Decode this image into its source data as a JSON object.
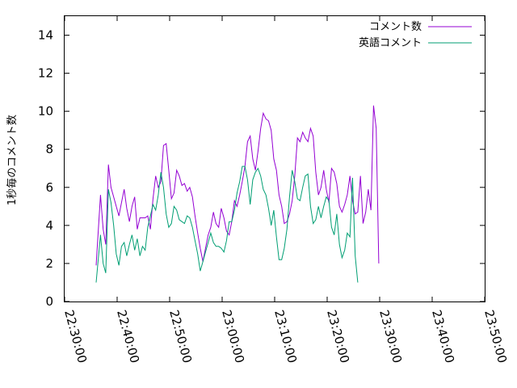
{
  "chart_data": {
    "type": "line",
    "ylabel": "1秒毎のコメント数",
    "xlabel": "",
    "ylim": [
      0,
      15
    ],
    "yticks": [
      0,
      2,
      4,
      6,
      8,
      10,
      12,
      14
    ],
    "xlim": [
      "22:30:00",
      "23:50:00"
    ],
    "xticks": [
      "22:30:00",
      "22:40:00",
      "22:50:00",
      "23:00:00",
      "23:10:00",
      "23:20:00",
      "23:30:00",
      "23:40:00",
      "23:50:00"
    ],
    "grid": false,
    "legend_position": "top-right",
    "series": [
      {
        "name": "コメント数",
        "color": "#9400d3",
        "points": [
          [
            "22:36:00",
            1.9
          ],
          [
            "22:36:50",
            5.6
          ],
          [
            "22:37:20",
            3.8
          ],
          [
            "22:37:50",
            3.0
          ],
          [
            "22:38:20",
            7.2
          ],
          [
            "22:38:50",
            6.0
          ],
          [
            "22:39:20",
            5.5
          ],
          [
            "22:39:50",
            5.0
          ],
          [
            "22:40:20",
            4.5
          ],
          [
            "22:40:50",
            5.2
          ],
          [
            "22:41:20",
            5.9
          ],
          [
            "22:41:50",
            4.9
          ],
          [
            "22:42:20",
            4.2
          ],
          [
            "22:42:50",
            5.0
          ],
          [
            "22:43:20",
            5.5
          ],
          [
            "22:43:50",
            3.8
          ],
          [
            "22:44:20",
            4.4
          ],
          [
            "22:44:50",
            4.4
          ],
          [
            "22:45:20",
            4.4
          ],
          [
            "22:45:50",
            4.5
          ],
          [
            "22:46:20",
            3.8
          ],
          [
            "22:46:50",
            5.4
          ],
          [
            "22:47:20",
            6.6
          ],
          [
            "22:47:50",
            6.0
          ],
          [
            "22:48:20",
            6.3
          ],
          [
            "22:48:50",
            8.2
          ],
          [
            "22:49:20",
            8.3
          ],
          [
            "22:49:50",
            6.9
          ],
          [
            "22:50:20",
            5.4
          ],
          [
            "22:50:50",
            5.7
          ],
          [
            "22:51:20",
            6.9
          ],
          [
            "22:51:50",
            6.6
          ],
          [
            "22:52:20",
            6.1
          ],
          [
            "22:52:50",
            6.2
          ],
          [
            "22:53:20",
            5.8
          ],
          [
            "22:53:50",
            6.0
          ],
          [
            "22:54:20",
            5.5
          ],
          [
            "22:54:50",
            4.5
          ],
          [
            "22:55:20",
            3.6
          ],
          [
            "22:55:50",
            2.8
          ],
          [
            "22:56:20",
            2.1
          ],
          [
            "22:56:50",
            2.8
          ],
          [
            "22:57:20",
            3.5
          ],
          [
            "22:57:50",
            3.9
          ],
          [
            "22:58:20",
            4.7
          ],
          [
            "22:58:50",
            4.1
          ],
          [
            "22:59:20",
            3.9
          ],
          [
            "22:59:50",
            4.9
          ],
          [
            "23:00:20",
            4.4
          ],
          [
            "23:00:50",
            3.7
          ],
          [
            "23:01:20",
            3.5
          ],
          [
            "23:01:50",
            4.2
          ],
          [
            "23:02:20",
            5.3
          ],
          [
            "23:02:50",
            5.0
          ],
          [
            "23:03:20",
            5.6
          ],
          [
            "23:03:50",
            6.3
          ],
          [
            "23:04:20",
            7.1
          ],
          [
            "23:04:50",
            8.4
          ],
          [
            "23:05:20",
            8.7
          ],
          [
            "23:05:50",
            7.5
          ],
          [
            "23:06:20",
            6.9
          ],
          [
            "23:06:50",
            7.9
          ],
          [
            "23:07:20",
            9.1
          ],
          [
            "23:07:50",
            9.9
          ],
          [
            "23:08:20",
            9.6
          ],
          [
            "23:08:50",
            9.5
          ],
          [
            "23:09:20",
            9.0
          ],
          [
            "23:09:50",
            7.5
          ],
          [
            "23:10:20",
            6.9
          ],
          [
            "23:10:50",
            5.6
          ],
          [
            "23:11:20",
            5.0
          ],
          [
            "23:11:50",
            4.1
          ],
          [
            "23:12:20",
            4.2
          ],
          [
            "23:12:50",
            4.6
          ],
          [
            "23:13:20",
            5.3
          ],
          [
            "23:13:50",
            6.6
          ],
          [
            "23:14:20",
            8.6
          ],
          [
            "23:14:50",
            8.4
          ],
          [
            "23:15:20",
            8.9
          ],
          [
            "23:15:50",
            8.6
          ],
          [
            "23:16:20",
            8.4
          ],
          [
            "23:16:50",
            9.1
          ],
          [
            "23:17:20",
            8.7
          ],
          [
            "23:17:50",
            6.8
          ],
          [
            "23:18:20",
            5.6
          ],
          [
            "23:18:50",
            6.0
          ],
          [
            "23:19:20",
            6.9
          ],
          [
            "23:19:50",
            5.9
          ],
          [
            "23:20:20",
            5.2
          ],
          [
            "23:20:50",
            7.0
          ],
          [
            "23:21:20",
            6.8
          ],
          [
            "23:21:50",
            6.2
          ],
          [
            "23:22:20",
            5.0
          ],
          [
            "23:22:50",
            4.7
          ],
          [
            "23:23:20",
            5.1
          ],
          [
            "23:23:50",
            5.6
          ],
          [
            "23:24:20",
            6.6
          ],
          [
            "23:24:50",
            5.3
          ],
          [
            "23:25:20",
            4.6
          ],
          [
            "23:25:50",
            4.7
          ],
          [
            "23:26:20",
            6.6
          ],
          [
            "23:26:50",
            4.1
          ],
          [
            "23:27:20",
            4.7
          ],
          [
            "23:27:50",
            5.9
          ],
          [
            "23:28:20",
            4.8
          ],
          [
            "23:28:50",
            10.3
          ],
          [
            "23:29:20",
            9.1
          ],
          [
            "23:29:50",
            2.0
          ]
        ]
      },
      {
        "name": "英語コメント",
        "color": "#009e73",
        "points": [
          [
            "22:36:00",
            1.0
          ],
          [
            "22:36:50",
            3.5
          ],
          [
            "22:37:20",
            2.0
          ],
          [
            "22:37:50",
            1.5
          ],
          [
            "22:38:20",
            5.9
          ],
          [
            "22:38:50",
            5.2
          ],
          [
            "22:39:20",
            4.0
          ],
          [
            "22:39:50",
            2.5
          ],
          [
            "22:40:20",
            1.9
          ],
          [
            "22:40:50",
            2.9
          ],
          [
            "22:41:20",
            3.1
          ],
          [
            "22:41:50",
            2.4
          ],
          [
            "22:42:20",
            3.0
          ],
          [
            "22:42:50",
            3.5
          ],
          [
            "22:43:20",
            2.7
          ],
          [
            "22:43:50",
            3.3
          ],
          [
            "22:44:20",
            2.4
          ],
          [
            "22:44:50",
            2.9
          ],
          [
            "22:45:20",
            2.7
          ],
          [
            "22:45:50",
            3.9
          ],
          [
            "22:46:20",
            4.5
          ],
          [
            "22:46:50",
            5.1
          ],
          [
            "22:47:20",
            4.8
          ],
          [
            "22:47:50",
            5.6
          ],
          [
            "22:48:20",
            6.8
          ],
          [
            "22:48:50",
            6.0
          ],
          [
            "22:49:20",
            4.6
          ],
          [
            "22:49:50",
            3.9
          ],
          [
            "22:50:20",
            4.1
          ],
          [
            "22:50:50",
            5.0
          ],
          [
            "22:51:20",
            4.8
          ],
          [
            "22:51:50",
            4.3
          ],
          [
            "22:52:20",
            4.2
          ],
          [
            "22:52:50",
            4.1
          ],
          [
            "22:53:20",
            4.5
          ],
          [
            "22:53:50",
            4.4
          ],
          [
            "22:54:20",
            3.9
          ],
          [
            "22:54:50",
            3.2
          ],
          [
            "22:55:20",
            2.5
          ],
          [
            "22:55:50",
            1.6
          ],
          [
            "22:56:20",
            2.1
          ],
          [
            "22:56:50",
            2.6
          ],
          [
            "22:57:20",
            3.1
          ],
          [
            "22:57:50",
            3.6
          ],
          [
            "22:58:20",
            3.1
          ],
          [
            "22:58:50",
            2.9
          ],
          [
            "22:59:20",
            2.9
          ],
          [
            "22:59:50",
            2.8
          ],
          [
            "23:00:20",
            2.6
          ],
          [
            "23:00:50",
            3.2
          ],
          [
            "23:01:20",
            4.2
          ],
          [
            "23:01:50",
            4.2
          ],
          [
            "23:02:20",
            4.8
          ],
          [
            "23:02:50",
            5.7
          ],
          [
            "23:03:20",
            6.3
          ],
          [
            "23:03:50",
            7.1
          ],
          [
            "23:04:20",
            7.1
          ],
          [
            "23:04:50",
            6.4
          ],
          [
            "23:05:20",
            5.1
          ],
          [
            "23:05:50",
            6.4
          ],
          [
            "23:06:20",
            6.8
          ],
          [
            "23:06:50",
            7.0
          ],
          [
            "23:07:20",
            6.6
          ],
          [
            "23:07:50",
            5.9
          ],
          [
            "23:08:20",
            5.6
          ],
          [
            "23:08:50",
            4.9
          ],
          [
            "23:09:20",
            4.0
          ],
          [
            "23:09:50",
            4.8
          ],
          [
            "23:10:20",
            3.4
          ],
          [
            "23:10:50",
            2.2
          ],
          [
            "23:11:20",
            2.2
          ],
          [
            "23:11:50",
            2.8
          ],
          [
            "23:12:20",
            3.8
          ],
          [
            "23:12:50",
            5.5
          ],
          [
            "23:13:20",
            6.9
          ],
          [
            "23:13:50",
            6.3
          ],
          [
            "23:14:20",
            5.4
          ],
          [
            "23:14:50",
            5.3
          ],
          [
            "23:15:20",
            6.0
          ],
          [
            "23:15:50",
            6.6
          ],
          [
            "23:16:20",
            6.7
          ],
          [
            "23:16:50",
            5.0
          ],
          [
            "23:17:20",
            4.1
          ],
          [
            "23:17:50",
            4.3
          ],
          [
            "23:18:20",
            5.0
          ],
          [
            "23:18:50",
            4.4
          ],
          [
            "23:19:20",
            5.0
          ],
          [
            "23:19:50",
            5.5
          ],
          [
            "23:20:20",
            5.3
          ],
          [
            "23:20:50",
            3.9
          ],
          [
            "23:21:20",
            3.5
          ],
          [
            "23:21:50",
            4.6
          ],
          [
            "23:22:20",
            3.0
          ],
          [
            "23:22:50",
            2.3
          ],
          [
            "23:23:20",
            2.7
          ],
          [
            "23:23:50",
            3.6
          ],
          [
            "23:24:20",
            3.4
          ],
          [
            "23:24:50",
            6.5
          ],
          [
            "23:25:20",
            2.4
          ],
          [
            "23:25:50",
            1.0
          ]
        ]
      }
    ]
  }
}
